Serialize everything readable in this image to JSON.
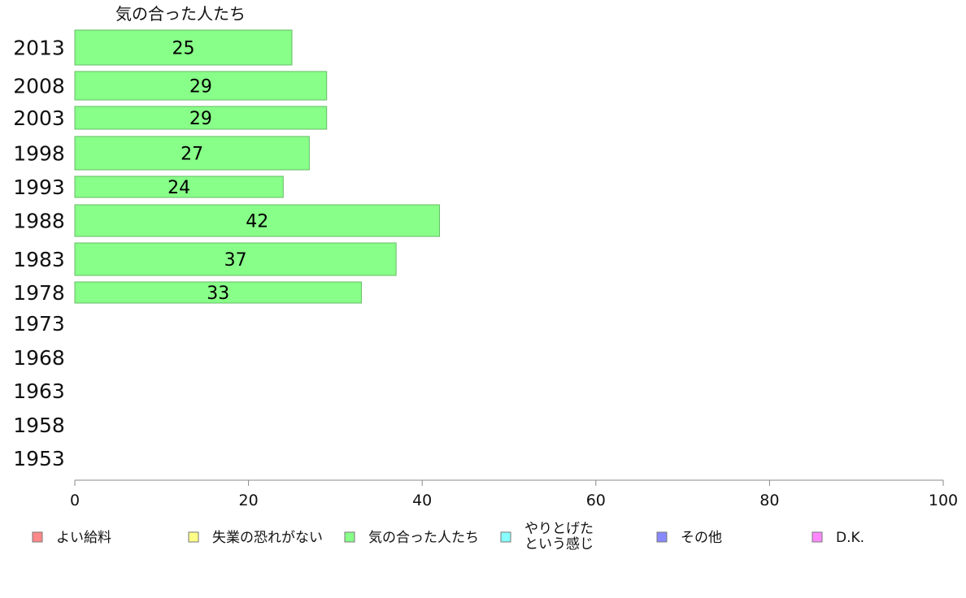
{
  "chart_data": {
    "type": "bar",
    "orientation": "horizontal",
    "title": "気の合った人たち",
    "categories": [
      "2013",
      "2008",
      "2003",
      "1998",
      "1993",
      "1988",
      "1983",
      "1978",
      "1973",
      "1968",
      "1963",
      "1958",
      "1953"
    ],
    "series": [
      {
        "name": "気の合った人たち",
        "values": [
          25,
          29,
          29,
          27,
          24,
          42,
          37,
          33,
          null,
          null,
          null,
          null,
          null
        ],
        "color": "#88ff88"
      }
    ],
    "xlim": [
      0,
      100
    ],
    "xticks": [
      "0",
      "20",
      "40",
      "60",
      "80",
      "100"
    ],
    "grid": false,
    "legend_position": "bottom",
    "legend": [
      {
        "label": "よい給料",
        "color": "#ff8888"
      },
      {
        "label": "失業の恐れがない",
        "color": "#ffff88"
      },
      {
        "label": "気の合った人たち",
        "color": "#88ff88"
      },
      {
        "label_lines": [
          "やりとげた",
          "という感じ"
        ],
        "color": "#88ffff"
      },
      {
        "label": "その他",
        "color": "#8888ff"
      },
      {
        "label": "D.K.",
        "color": "#ff88ff"
      }
    ]
  }
}
